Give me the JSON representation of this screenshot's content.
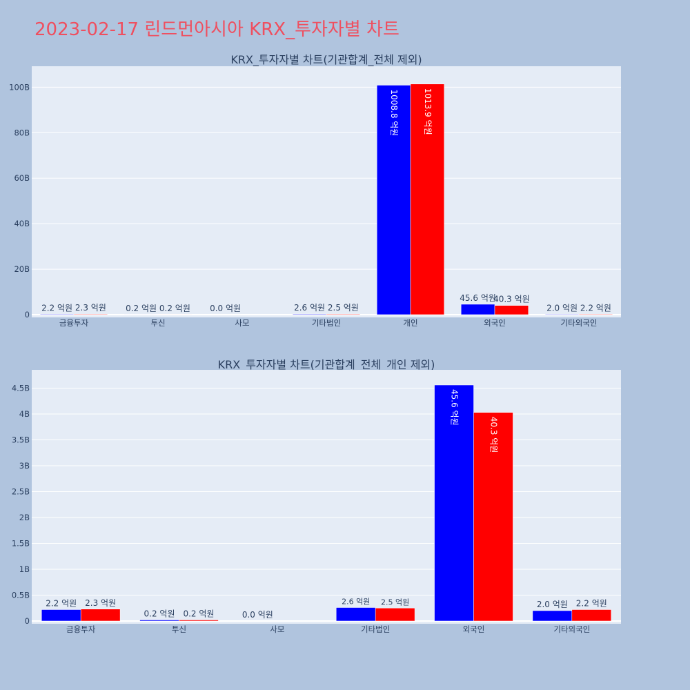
{
  "page": {
    "title": "2023-02-17 린드먼아시아 KRX_투자자별 차트"
  },
  "colors": {
    "background": "#b0c4de",
    "plot_bg": "#e5ecf6",
    "series_a": "#0000ff",
    "series_b": "#ff0000",
    "title": "#ef4f5f"
  },
  "chart_data": [
    {
      "type": "bar",
      "title": "KRX_투자자별 차트(기관합계_전체 제외)",
      "categories": [
        "금융투자",
        "투신",
        "사모",
        "기타법인",
        "개인",
        "외국인",
        "기타외국인"
      ],
      "series": [
        {
          "values": [
            220000000,
            20000000,
            0,
            260000000,
            100880000000,
            4560000000,
            200000000
          ],
          "labels": [
            "2.2 억원",
            "0.2 억원",
            "0.0 억원",
            "2.6 억원",
            "1008.8 억원",
            "45.6 억원",
            "2.0 억원"
          ]
        },
        {
          "values": [
            230000000,
            20000000,
            null,
            250000000,
            101390000000,
            4030000000,
            220000000
          ],
          "labels": [
            "2.3 억원",
            "0.2 억원",
            "",
            "2.5 억원",
            "1013.9 억원",
            "40.3 억원",
            "2.2 억원"
          ]
        }
      ],
      "ylim": [
        0,
        108000000000
      ],
      "yticks": [
        0,
        20000000000,
        40000000000,
        60000000000,
        80000000000,
        100000000000
      ],
      "ytick_labels": [
        "0",
        "20B",
        "40B",
        "60B",
        "80B",
        "100B"
      ],
      "grid": true,
      "legend": "none"
    },
    {
      "type": "bar",
      "title": "KRX_투자자별 차트(기관합계_전체_개인 제외)",
      "categories": [
        "금융투자",
        "투신",
        "사모",
        "기타법인",
        "외국인",
        "기타외국인"
      ],
      "series": [
        {
          "values": [
            220000000,
            20000000,
            0,
            260000000,
            4560000000,
            200000000
          ],
          "labels": [
            "2.2 억원",
            "0.2 억원",
            "0.0 억원",
            "2.6 억원",
            "45.6 억원",
            "2.0 억원"
          ]
        },
        {
          "values": [
            230000000,
            20000000,
            null,
            250000000,
            4030000000,
            220000000
          ],
          "labels": [
            "2.3 억원",
            "0.2 억원",
            "",
            "2.5 억원",
            "40.3 억원",
            "2.2 억원"
          ]
        }
      ],
      "ylim": [
        0,
        4800000000
      ],
      "yticks": [
        0,
        500000000,
        1000000000,
        1500000000,
        2000000000,
        2500000000,
        3000000000,
        3500000000,
        4000000000,
        4500000000
      ],
      "ytick_labels": [
        "0",
        "0.5B",
        "1B",
        "1.5B",
        "2B",
        "2.5B",
        "3B",
        "3.5B",
        "4B",
        "4.5B"
      ],
      "grid": true,
      "legend": "none"
    }
  ]
}
